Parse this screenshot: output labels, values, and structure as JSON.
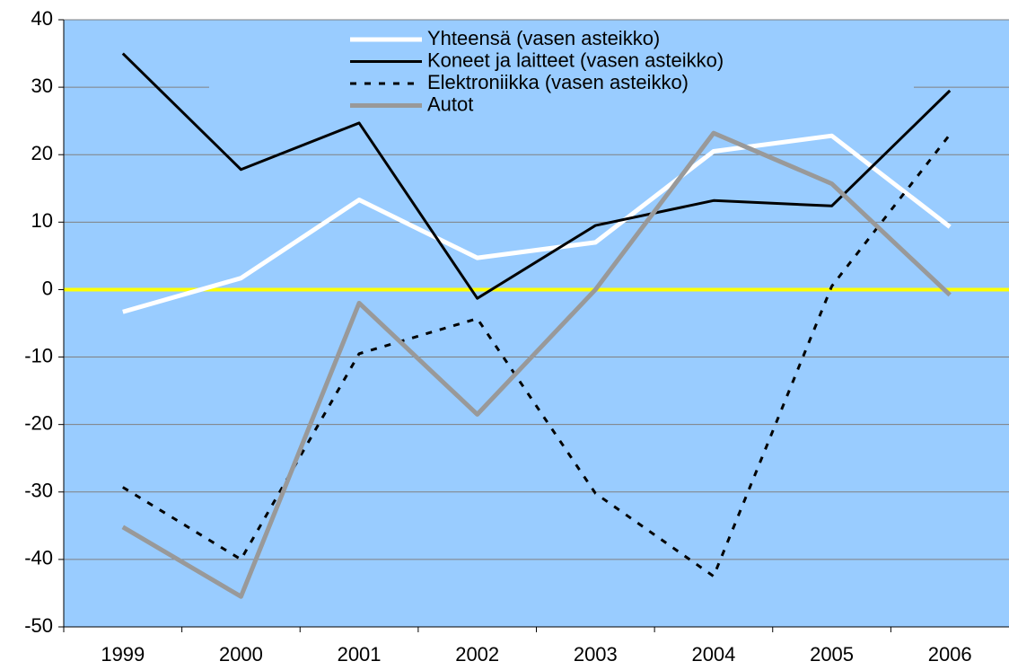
{
  "chart_data": {
    "type": "line",
    "categories": [
      "1999",
      "2000",
      "2001",
      "2002",
      "2003",
      "2004",
      "2005",
      "2006"
    ],
    "series": [
      {
        "name": "Yhteensä (vasen asteikko)",
        "color": "#ffffff",
        "values": [
          -3.3,
          1.7,
          13.3,
          4.7,
          7,
          20.5,
          22.8,
          9.3
        ]
      },
      {
        "name": "Koneet ja laitteet (vasen asteikko)",
        "color": "#000000",
        "values": [
          35,
          17.8,
          24.7,
          -1.3,
          9.5,
          13.2,
          12.4,
          29.5
        ]
      },
      {
        "name": "Elektroniikka (vasen asteikko)",
        "color": "#000000",
        "dashed": true,
        "values": [
          -29.3,
          -40,
          -9.5,
          -4.3,
          -30.2,
          -42.5,
          0.5,
          23
        ]
      },
      {
        "name": "Autot",
        "color": "#999999",
        "values": [
          -35.2,
          -45.5,
          -2,
          -18.5,
          0,
          23.2,
          15.7,
          -0.8
        ]
      }
    ],
    "ylim": [
      -50,
      40
    ],
    "yticks": [
      -50,
      -40,
      -30,
      -20,
      -10,
      0,
      10,
      20,
      30,
      40
    ],
    "grid": true,
    "zero_line_color": "#ffff00",
    "background": "#99ccff",
    "legend": "top"
  }
}
